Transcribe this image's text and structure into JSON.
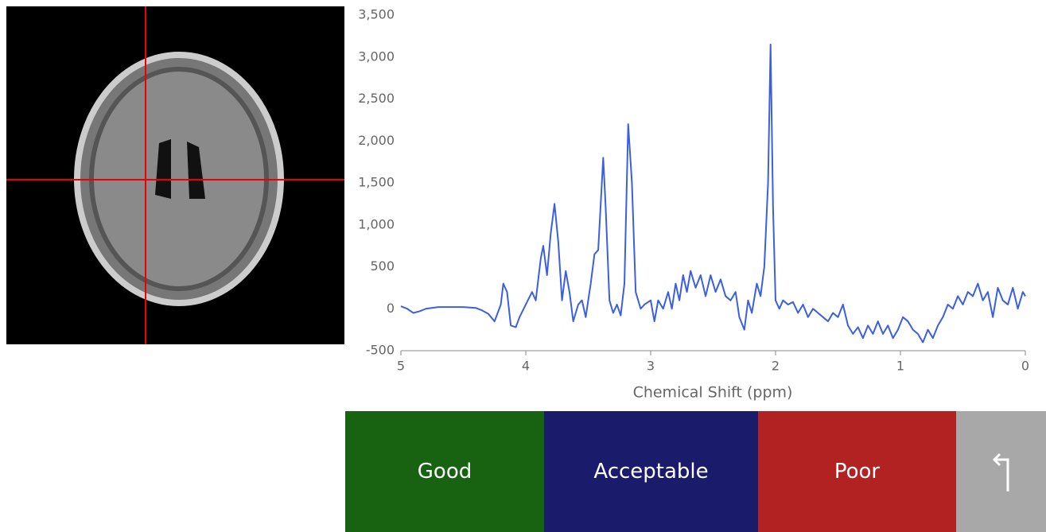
{
  "chart_data": {
    "type": "line",
    "xlabel": "Chemical Shift (ppm)",
    "x": [
      5,
      4.95,
      4.9,
      4.85,
      4.8,
      4.7,
      4.6,
      4.5,
      4.4,
      4.35,
      4.3,
      4.25,
      4.2,
      4.18,
      4.15,
      4.12,
      4.08,
      4.05,
      4.0,
      3.95,
      3.92,
      3.88,
      3.86,
      3.83,
      3.8,
      3.77,
      3.74,
      3.71,
      3.68,
      3.65,
      3.62,
      3.58,
      3.55,
      3.52,
      3.48,
      3.45,
      3.42,
      3.38,
      3.36,
      3.33,
      3.3,
      3.27,
      3.24,
      3.21,
      3.18,
      3.15,
      3.12,
      3.08,
      3.05,
      3.0,
      2.97,
      2.94,
      2.9,
      2.86,
      2.83,
      2.8,
      2.77,
      2.74,
      2.71,
      2.68,
      2.64,
      2.6,
      2.56,
      2.52,
      2.48,
      2.44,
      2.4,
      2.36,
      2.32,
      2.29,
      2.25,
      2.22,
      2.19,
      2.15,
      2.12,
      2.09,
      2.06,
      2.04,
      2.02,
      2.0,
      1.97,
      1.94,
      1.9,
      1.86,
      1.82,
      1.78,
      1.74,
      1.7,
      1.66,
      1.62,
      1.58,
      1.54,
      1.5,
      1.46,
      1.42,
      1.38,
      1.34,
      1.3,
      1.26,
      1.22,
      1.18,
      1.14,
      1.1,
      1.06,
      1.02,
      0.98,
      0.94,
      0.9,
      0.86,
      0.82,
      0.78,
      0.74,
      0.7,
      0.66,
      0.62,
      0.58,
      0.54,
      0.5,
      0.46,
      0.42,
      0.38,
      0.34,
      0.3,
      0.26,
      0.22,
      0.18,
      0.14,
      0.1,
      0.06,
      0.02,
      0
    ],
    "values": [
      30,
      0,
      -50,
      -30,
      0,
      20,
      20,
      20,
      10,
      -20,
      -60,
      -150,
      50,
      300,
      200,
      -200,
      -220,
      -100,
      50,
      200,
      100,
      600,
      750,
      400,
      900,
      1250,
      800,
      100,
      450,
      200,
      -150,
      50,
      100,
      -100,
      300,
      650,
      700,
      1800,
      1200,
      100,
      -50,
      50,
      -80,
      300,
      2200,
      1500,
      200,
      0,
      50,
      100,
      -150,
      100,
      0,
      200,
      0,
      300,
      100,
      400,
      200,
      450,
      250,
      400,
      150,
      400,
      200,
      350,
      150,
      100,
      200,
      -100,
      -250,
      100,
      -50,
      300,
      150,
      500,
      1500,
      3150,
      1200,
      100,
      0,
      100,
      50,
      80,
      -50,
      50,
      -100,
      0,
      -50,
      -100,
      -150,
      -50,
      -100,
      50,
      -200,
      -300,
      -220,
      -350,
      -200,
      -300,
      -150,
      -300,
      -200,
      -350,
      -250,
      -100,
      -150,
      -250,
      -300,
      -400,
      -250,
      -350,
      -200,
      -100,
      50,
      0,
      150,
      50,
      200,
      150,
      300,
      100,
      200,
      -100,
      250,
      100,
      50,
      250,
      0,
      200,
      150
    ],
    "color": "#3b5fe2",
    "xlim": [
      5,
      0
    ],
    "xticks": [
      5,
      4,
      3,
      2,
      1,
      0
    ],
    "ylim": [
      -500,
      3500
    ],
    "yticks": [
      -500,
      0,
      500,
      {
        "value": 1000,
        "label": "1,000"
      },
      {
        "value": 1500,
        "label": "1,500"
      },
      {
        "value": 2000,
        "label": "2,000"
      },
      {
        "value": 2500,
        "label": "2,500"
      },
      {
        "value": 3000,
        "label": "3,000"
      },
      {
        "value": 3500,
        "label": "3,500"
      }
    ]
  },
  "buttons": [
    "Good",
    "Acceptable",
    "Poor"
  ]
}
